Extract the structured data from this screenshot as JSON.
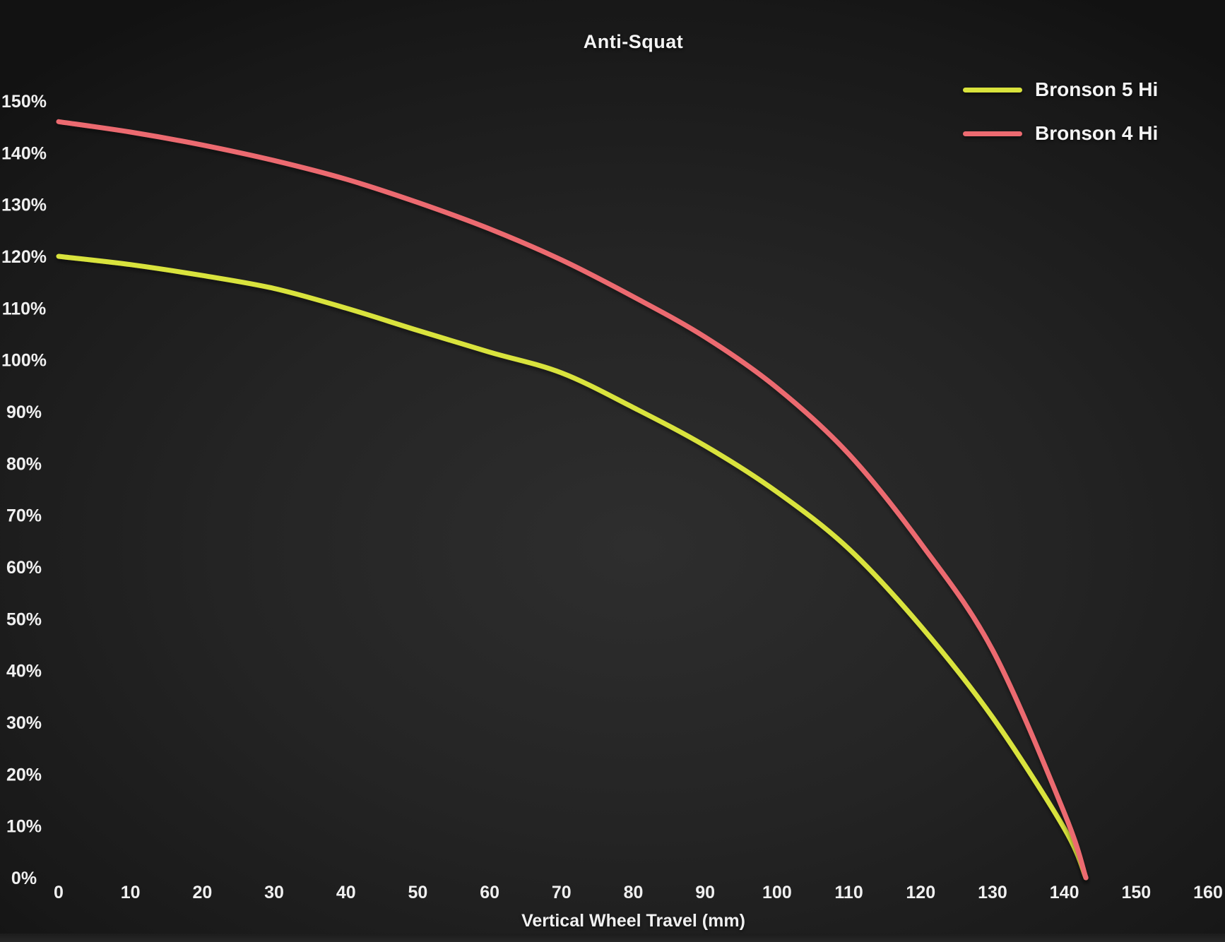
{
  "chart_data": {
    "type": "line",
    "title": "Anti-Squat",
    "xlabel": "Vertical Wheel Travel (mm)",
    "ylabel": "",
    "x": [
      0,
      10,
      20,
      30,
      40,
      50,
      60,
      70,
      80,
      90,
      100,
      110,
      120,
      130,
      140,
      143
    ],
    "series": [
      {
        "name": "Bronson 5 Hi",
        "color": "#d9e33c",
        "values": [
          120,
          118.4,
          116.3,
          113.8,
          110,
          105.7,
          101.5,
          97.5,
          90.8,
          83.4,
          74.5,
          63.5,
          48.6,
          31,
          9.5,
          0
        ]
      },
      {
        "name": "Bronson 4 Hi",
        "color": "#ec6a70",
        "values": [
          146,
          144,
          141.5,
          138.5,
          134.9,
          130.4,
          125.3,
          119.3,
          112.2,
          104.4,
          94.6,
          81.8,
          64.6,
          44,
          12.5,
          0
        ]
      }
    ],
    "x_ticks": [
      "0",
      "10",
      "20",
      "30",
      "40",
      "50",
      "60",
      "70",
      "80",
      "90",
      "100",
      "110",
      "120",
      "130",
      "140",
      "150",
      "160"
    ],
    "y_ticks": [
      "0%",
      "10%",
      "20%",
      "30%",
      "40%",
      "50%",
      "60%",
      "70%",
      "80%",
      "90%",
      "100%",
      "110%",
      "120%",
      "130%",
      "140%",
      "150%"
    ],
    "xlim": [
      0,
      160
    ],
    "ylim": [
      0,
      150
    ],
    "grid": false,
    "legend_position": "top-right",
    "background_color": "#242424",
    "text_color": "#f0f0f0"
  }
}
